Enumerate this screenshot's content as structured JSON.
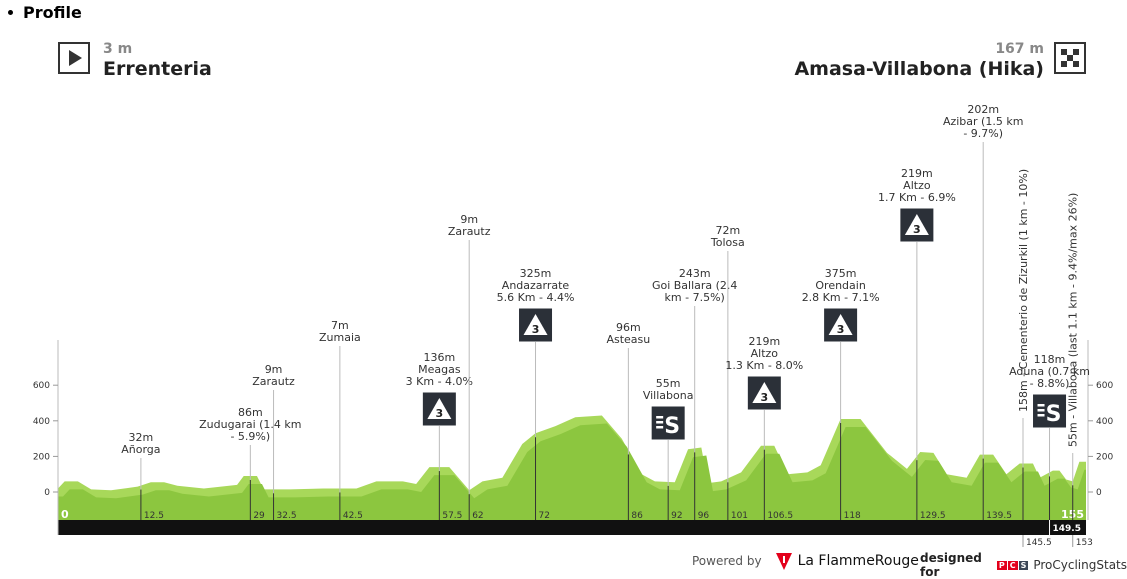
{
  "heading": "Profile",
  "start": {
    "altitude": "3 m",
    "town": "Errenteria",
    "icon": "play-icon"
  },
  "finish": {
    "altitude": "167 m",
    "town": "Amasa-Villabona (Hika)",
    "icon": "checkered-flag-icon"
  },
  "footer": {
    "powered_by": "Powered by",
    "brand": "La FlammeRouge",
    "designed_for": "designed for",
    "pcs_letters": [
      "P",
      "C",
      "S"
    ],
    "pcs_name": "ProCyclingStats"
  },
  "colors": {
    "profile": "#8cc63f",
    "profile_light": "#a8d85a",
    "bar": "#111111",
    "marker_icon": "#2b3038",
    "flamme_red": "#e3001b"
  },
  "chart_data": {
    "type": "area",
    "xlim": [
      0,
      155
    ],
    "ylim": [
      -150,
      800
    ],
    "yticks": [
      0,
      200,
      400,
      600
    ],
    "x_start_label": "0",
    "x_end_label": "155",
    "profile": [
      [
        0,
        20
      ],
      [
        1,
        60
      ],
      [
        3,
        60
      ],
      [
        5,
        15
      ],
      [
        8,
        10
      ],
      [
        12,
        30
      ],
      [
        14,
        55
      ],
      [
        16,
        55
      ],
      [
        18,
        35
      ],
      [
        22,
        20
      ],
      [
        27,
        40
      ],
      [
        28,
        90
      ],
      [
        30,
        90
      ],
      [
        31,
        15
      ],
      [
        35,
        15
      ],
      [
        40,
        20
      ],
      [
        45,
        20
      ],
      [
        48,
        60
      ],
      [
        52,
        60
      ],
      [
        54,
        45
      ],
      [
        56,
        140
      ],
      [
        59,
        140
      ],
      [
        62,
        10
      ],
      [
        64,
        60
      ],
      [
        67,
        80
      ],
      [
        70,
        270
      ],
      [
        72,
        330
      ],
      [
        75,
        370
      ],
      [
        78,
        420
      ],
      [
        82,
        430
      ],
      [
        85,
        300
      ],
      [
        88,
        100
      ],
      [
        90,
        60
      ],
      [
        93,
        55
      ],
      [
        95,
        240
      ],
      [
        97,
        250
      ],
      [
        98,
        50
      ],
      [
        100,
        60
      ],
      [
        103,
        110
      ],
      [
        106,
        260
      ],
      [
        108,
        260
      ],
      [
        110,
        100
      ],
      [
        113,
        110
      ],
      [
        115,
        150
      ],
      [
        118,
        410
      ],
      [
        121,
        410
      ],
      [
        125,
        220
      ],
      [
        128,
        130
      ],
      [
        130,
        225
      ],
      [
        132,
        220
      ],
      [
        134,
        100
      ],
      [
        137,
        80
      ],
      [
        139,
        210
      ],
      [
        141,
        210
      ],
      [
        143,
        100
      ],
      [
        145,
        160
      ],
      [
        147,
        160
      ],
      [
        148,
        80
      ],
      [
        150,
        120
      ],
      [
        151,
        120
      ],
      [
        152,
        70
      ],
      [
        153,
        60
      ],
      [
        154,
        170
      ],
      [
        155,
        170
      ]
    ],
    "markers": [
      {
        "km": "12.5",
        "lines": [
          "32m",
          "Añorga"
        ]
      },
      {
        "km": "29",
        "lines": [
          "86m",
          "Zudugarai (1.4 km",
          "- 5.9%)"
        ]
      },
      {
        "km": "32.5",
        "lines": [
          "9m",
          "Zarautz"
        ]
      },
      {
        "km": "42.5",
        "lines": [
          "7m",
          "Zumaia"
        ]
      },
      {
        "km": "57.5",
        "lines": [
          "136m",
          "Meagas",
          "3 Km - 4.0%"
        ],
        "icon": "cat3"
      },
      {
        "km": "62",
        "lines": [
          "9m",
          "Zarautz"
        ]
      },
      {
        "km": "72",
        "lines": [
          "325m",
          "Andazarrate",
          "5.6 Km - 4.4%"
        ],
        "icon": "cat3"
      },
      {
        "km": "86",
        "lines": [
          "96m",
          "Asteasu"
        ]
      },
      {
        "km": "92",
        "lines": [
          "55m",
          "Villabona"
        ],
        "icon": "sprint"
      },
      {
        "km": "96",
        "lines": [
          "243m",
          "Goi Ballara (2.4",
          "km - 7.5%)"
        ]
      },
      {
        "km": "101",
        "lines": [
          "72m",
          "Tolosa"
        ]
      },
      {
        "km": "106.5",
        "lines": [
          "219m",
          "Altzo",
          "1.3 Km - 8.0%"
        ],
        "icon": "cat3"
      },
      {
        "km": "118",
        "lines": [
          "375m",
          "Orendain",
          "2.8 Km - 7.1%"
        ],
        "icon": "cat3"
      },
      {
        "km": "129.5",
        "lines": [
          "219m",
          "Altzo",
          "1.7 Km - 6.9%"
        ],
        "icon": "cat3"
      },
      {
        "km": "139.5",
        "lines": [
          "202m",
          "Azibar (1.5 km",
          "- 9.7%)"
        ]
      },
      {
        "km": "145.5",
        "lines": [
          "158m - Cementerio de Zizurkil (1 km - 10%)"
        ],
        "vertical": true
      },
      {
        "km": "149.5",
        "lines": [
          "118m",
          "Aduna (0.7 km",
          "- 8.8%)"
        ],
        "icon": "sprint"
      },
      {
        "km": "153",
        "lines": [
          "55m - Villabona (last 1.1 km - 9.4%/max 26%)"
        ],
        "vertical": true
      }
    ]
  }
}
